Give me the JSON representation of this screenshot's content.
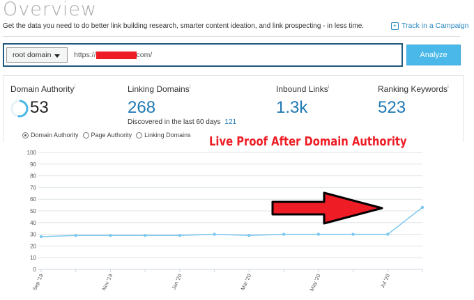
{
  "header": {
    "title": "Overview",
    "subtitle": "Get the data you need to do better link building research, smarter content ideation, and link prospecting - in less time.",
    "track_label": "Track in a Campaign"
  },
  "search": {
    "scope": "root domain",
    "url_prefix": "https://",
    "url_suffix": "com/",
    "analyze_label": "Analyze"
  },
  "stats": {
    "domain_authority": {
      "label": "Domain Authority",
      "value": "53",
      "score": 53
    },
    "linking_domains": {
      "label": "Linking Domains",
      "value": "268",
      "discovered_label": "Discovered in the last 60 days",
      "discovered_value": "121"
    },
    "inbound_links": {
      "label": "Inbound Links",
      "value": "1.3k"
    },
    "ranking_keywords": {
      "label": "Ranking Keywords",
      "value": "523"
    },
    "info_glyph": "i"
  },
  "metric_options": [
    {
      "label": "Domain Authority",
      "selected": true
    },
    {
      "label": "Page Authority",
      "selected": false
    },
    {
      "label": "Linking Domains",
      "selected": false
    }
  ],
  "annotation": "Live Proof After Domain Authority",
  "colors": {
    "accent": "#1f78b4",
    "button": "#4ab8e8",
    "line": "#7cc8ee",
    "annotation": "#ee1c24"
  },
  "chart_data": {
    "type": "line",
    "x": [
      "Sep '19",
      "Oct '19",
      "Nov '19",
      "Dec '19",
      "Jan '20",
      "Feb '20",
      "Mar '20",
      "Apr '20",
      "May '20",
      "Jun '20",
      "Jul '20",
      "Aug '20"
    ],
    "tick_labels": [
      "Sep '19",
      "Nov '19",
      "Jan '20",
      "Mar '20",
      "May '20",
      "Jul '20"
    ],
    "values": [
      28,
      29,
      29,
      29,
      29,
      30,
      29,
      30,
      30,
      30,
      30,
      53
    ],
    "ylim": [
      0,
      100
    ],
    "yticks": [
      0,
      10,
      20,
      30,
      40,
      50,
      60,
      70,
      80,
      90,
      100
    ],
    "grid": true
  }
}
